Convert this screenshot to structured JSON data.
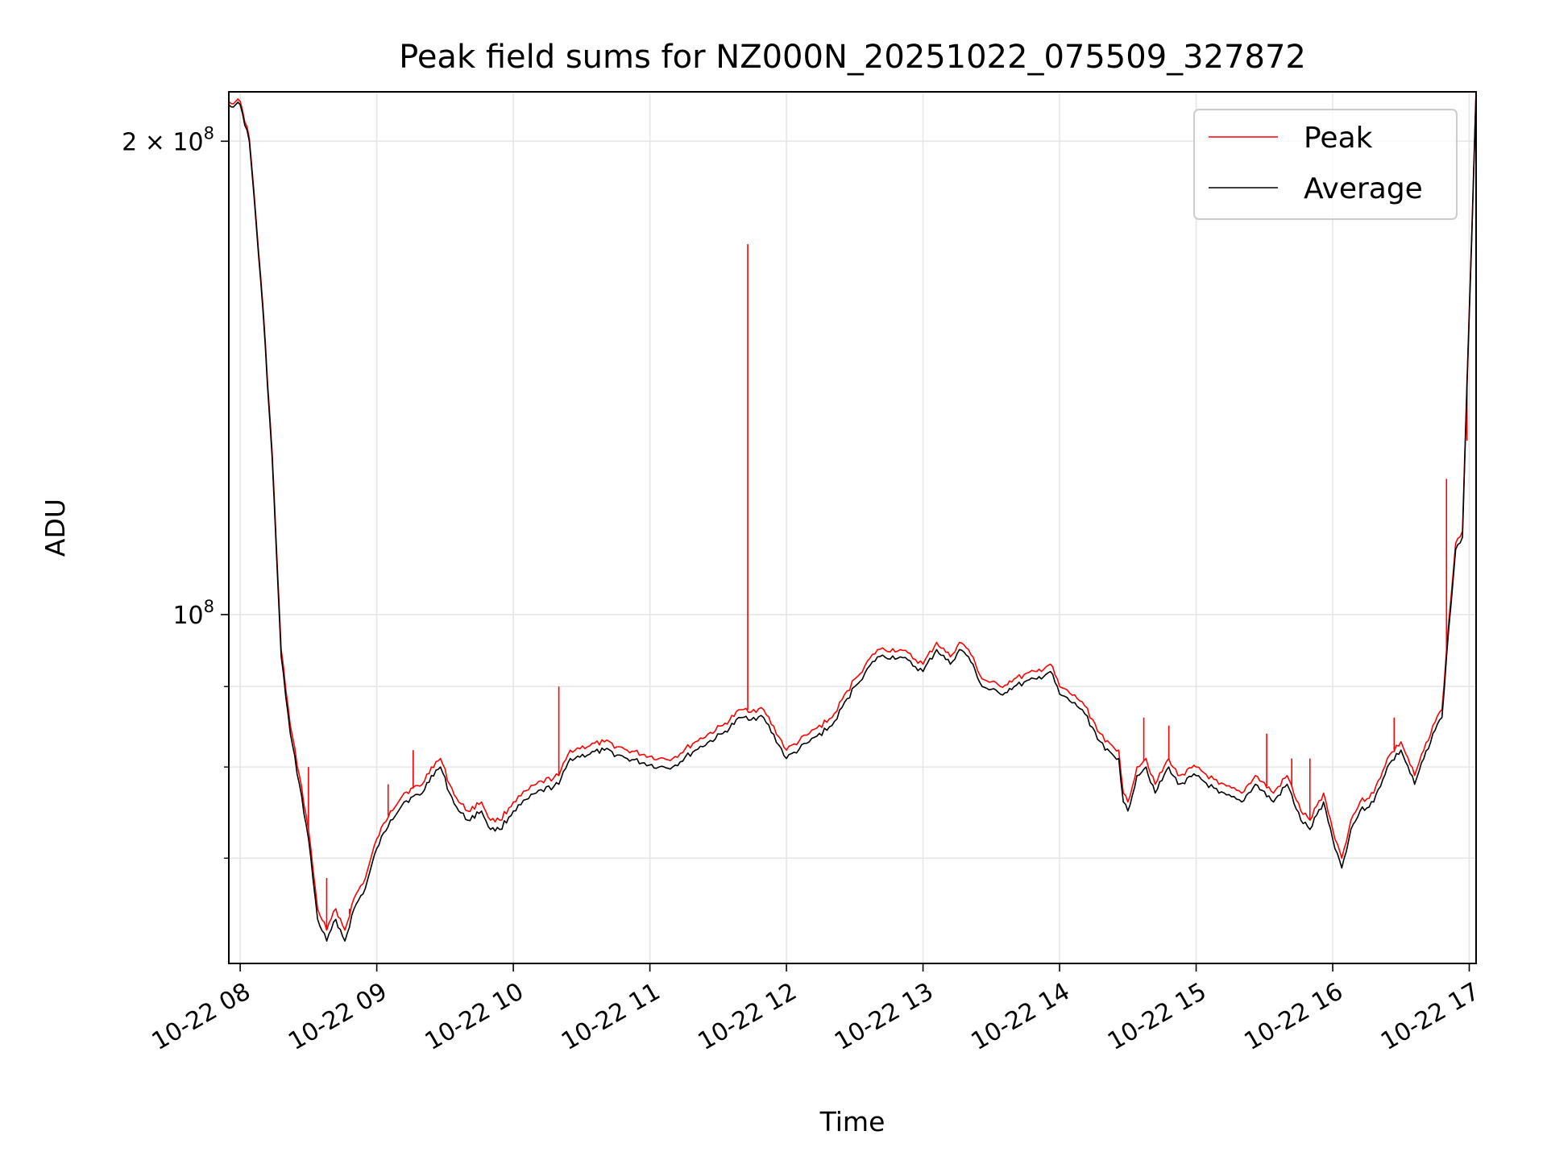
{
  "chart_data": {
    "type": "line",
    "title": "Peak field sums for NZ000N_20251022_075509_327872",
    "xlabel": "Time",
    "ylabel": "ADU",
    "yscale": "log",
    "xlim": [
      "2025-10-22T07:55",
      "2025-10-22T17:03"
    ],
    "ylim": [
      60000000,
      215000000
    ],
    "grid": true,
    "legend_position": "top-right",
    "x_ticks": [
      "10-22 08",
      "10-22 09",
      "10-22 10",
      "10-22 11",
      "10-22 12",
      "10-22 13",
      "10-22 14",
      "10-22 15",
      "10-22 16",
      "10-22 17"
    ],
    "y_ticks_labeled": [
      {
        "value": 200000000,
        "base": "2 × 10",
        "exp": "8"
      },
      {
        "value": 100000000,
        "base": "10",
        "exp": "8"
      }
    ],
    "y_ticks_minor": [
      70000000,
      80000000,
      90000000
    ],
    "series": [
      {
        "name": "Peak",
        "color": "#ff0000",
        "spikes": [
          {
            "x": "2025-10-22T08:30",
            "y": 80000000
          },
          {
            "x": "2025-10-22T08:38",
            "y": 68000000
          },
          {
            "x": "2025-10-22T08:48",
            "y": 65000000
          },
          {
            "x": "2025-10-22T09:05",
            "y": 78000000
          },
          {
            "x": "2025-10-22T09:16",
            "y": 82000000
          },
          {
            "x": "2025-10-22T10:20",
            "y": 90000000
          },
          {
            "x": "2025-10-22T11:43",
            "y": 172000000
          },
          {
            "x": "2025-10-22T14:37",
            "y": 86000000
          },
          {
            "x": "2025-10-22T14:48",
            "y": 85000000
          },
          {
            "x": "2025-10-22T15:31",
            "y": 84000000
          },
          {
            "x": "2025-10-22T15:42",
            "y": 81000000
          },
          {
            "x": "2025-10-22T15:50",
            "y": 81000000
          },
          {
            "x": "2025-10-22T16:27",
            "y": 86000000
          },
          {
            "x": "2025-10-22T16:50",
            "y": 122000000
          },
          {
            "x": "2025-10-22T16:59",
            "y": 129000000
          }
        ]
      },
      {
        "name": "Average",
        "color": "#000000"
      }
    ],
    "x": [
      "2025-10-22T07:55",
      "2025-10-22T07:58",
      "2025-10-22T08:00",
      "2025-10-22T08:04",
      "2025-10-22T08:06",
      "2025-10-22T08:10",
      "2025-10-22T08:14",
      "2025-10-22T08:18",
      "2025-10-22T08:22",
      "2025-10-22T08:26",
      "2025-10-22T08:30",
      "2025-10-22T08:34",
      "2025-10-22T08:38",
      "2025-10-22T08:42",
      "2025-10-22T08:46",
      "2025-10-22T08:50",
      "2025-10-22T08:55",
      "2025-10-22T09:00",
      "2025-10-22T09:06",
      "2025-10-22T09:12",
      "2025-10-22T09:20",
      "2025-10-22T09:24",
      "2025-10-22T09:28",
      "2025-10-22T09:32",
      "2025-10-22T09:36",
      "2025-10-22T09:40",
      "2025-10-22T09:46",
      "2025-10-22T09:50",
      "2025-10-22T09:54",
      "2025-10-22T10:00",
      "2025-10-22T10:10",
      "2025-10-22T10:20",
      "2025-10-22T10:25",
      "2025-10-22T10:40",
      "2025-10-22T10:50",
      "2025-10-22T11:04",
      "2025-10-22T11:10",
      "2025-10-22T11:20",
      "2025-10-22T11:32",
      "2025-10-22T11:40",
      "2025-10-22T11:50",
      "2025-10-22T12:00",
      "2025-10-22T12:10",
      "2025-10-22T12:20",
      "2025-10-22T12:30",
      "2025-10-22T12:40",
      "2025-10-22T12:50",
      "2025-10-22T13:00",
      "2025-10-22T13:06",
      "2025-10-22T13:12",
      "2025-10-22T13:16",
      "2025-10-22T13:20",
      "2025-10-22T13:26",
      "2025-10-22T13:34",
      "2025-10-22T13:40",
      "2025-10-22T13:50",
      "2025-10-22T13:56",
      "2025-10-22T14:00",
      "2025-10-22T14:10",
      "2025-10-22T14:20",
      "2025-10-22T14:26",
      "2025-10-22T14:28",
      "2025-10-22T14:30",
      "2025-10-22T14:34",
      "2025-10-22T14:38",
      "2025-10-22T14:42",
      "2025-10-22T14:48",
      "2025-10-22T14:52",
      "2025-10-22T15:00",
      "2025-10-22T15:10",
      "2025-10-22T15:20",
      "2025-10-22T15:26",
      "2025-10-22T15:34",
      "2025-10-22T15:40",
      "2025-10-22T15:46",
      "2025-10-22T15:50",
      "2025-10-22T15:56",
      "2025-10-22T16:00",
      "2025-10-22T16:04",
      "2025-10-22T16:08",
      "2025-10-22T16:12",
      "2025-10-22T16:18",
      "2025-10-22T16:24",
      "2025-10-22T16:30",
      "2025-10-22T16:36",
      "2025-10-22T16:44",
      "2025-10-22T16:48",
      "2025-10-22T16:50",
      "2025-10-22T16:54",
      "2025-10-22T16:57",
      "2025-10-22T17:00",
      "2025-10-22T17:03"
    ],
    "average_values": [
      211000000,
      211000000,
      211000000,
      200000000,
      185000000,
      156000000,
      126000000,
      94000000,
      84000000,
      78000000,
      72000000,
      64000000,
      62000000,
      64000000,
      62000000,
      65000000,
      67000000,
      71000000,
      74000000,
      76000000,
      77000000,
      79000000,
      80000000,
      77000000,
      75000000,
      74000000,
      75000000,
      73000000,
      73000000,
      75000000,
      77000000,
      78000000,
      81000000,
      82000000,
      81000000,
      80000000,
      80000000,
      82000000,
      84000000,
      86000000,
      86000000,
      81000000,
      83000000,
      85000000,
      90000000,
      94000000,
      94000000,
      92000000,
      95000000,
      93000000,
      95000000,
      94000000,
      90000000,
      89000000,
      90000000,
      91000000,
      92000000,
      89000000,
      87000000,
      82000000,
      81000000,
      76000000,
      75000000,
      79000000,
      80000000,
      77000000,
      80000000,
      78000000,
      79000000,
      77000000,
      76000000,
      78000000,
      76000000,
      78000000,
      74000000,
      73000000,
      76000000,
      72000000,
      69000000,
      73000000,
      75000000,
      76000000,
      80000000,
      82000000,
      78000000,
      84000000,
      86000000,
      94000000,
      110000000,
      112000000,
      155000000,
      215000000
    ],
    "peak_values": [
      212000000,
      212000000,
      212000000,
      201000000,
      186000000,
      157000000,
      127000000,
      95000000,
      85000000,
      79000000,
      73000000,
      65000000,
      63000000,
      65000000,
      63000000,
      66000000,
      68000000,
      72000000,
      75000000,
      77000000,
      78000000,
      80000000,
      81000000,
      78000000,
      76000000,
      75000000,
      76000000,
      74000000,
      74000000,
      76000000,
      78000000,
      79000000,
      82000000,
      83000000,
      82000000,
      81000000,
      81000000,
      83000000,
      85000000,
      87000000,
      87000000,
      82000000,
      84000000,
      86000000,
      91000000,
      95000000,
      95000000,
      93000000,
      96000000,
      94000000,
      96000000,
      95000000,
      91000000,
      90000000,
      91000000,
      92000000,
      93000000,
      90000000,
      88000000,
      83000000,
      82000000,
      77000000,
      76000000,
      80000000,
      81000000,
      78000000,
      81000000,
      79000000,
      80000000,
      78000000,
      77000000,
      79000000,
      77000000,
      79000000,
      75000000,
      74000000,
      77000000,
      73000000,
      70000000,
      74000000,
      76000000,
      77000000,
      81000000,
      83000000,
      79000000,
      85000000,
      87000000,
      95000000,
      111000000,
      113000000,
      156000000,
      216000000
    ]
  }
}
